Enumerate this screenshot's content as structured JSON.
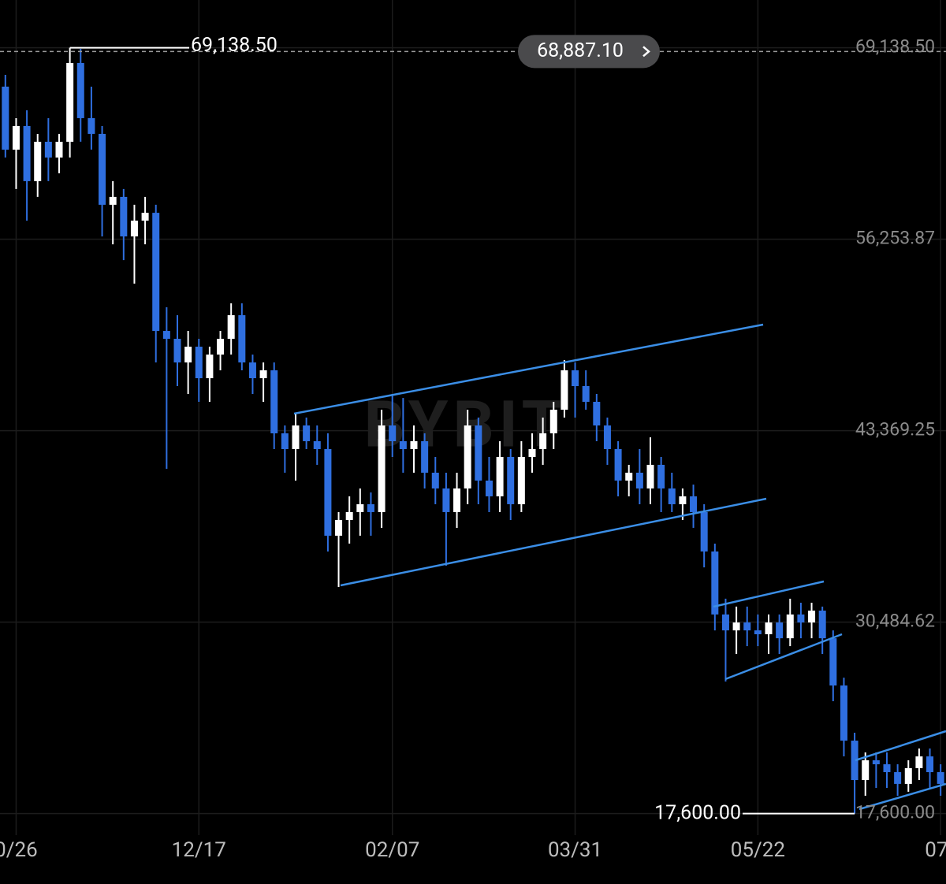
{
  "chart_data": {
    "type": "candlestick",
    "watermark": "BYBIT",
    "up_color": "#ffffff",
    "down_color": "#2f6fe0",
    "grid": true,
    "ylim": [
      16150,
      72350
    ],
    "yticks": [
      {
        "value": 69138.5,
        "label": "69,138.50"
      },
      {
        "value": 56253.87,
        "label": "56,253.87"
      },
      {
        "value": 43369.25,
        "label": "43,369.25"
      },
      {
        "value": 30484.62,
        "label": "30,484.62"
      },
      {
        "value": 17600,
        "label": "17,600.00"
      }
    ],
    "high_marker": {
      "value": 69138.5,
      "label": "69,138.50"
    },
    "low_marker": {
      "value": 17600,
      "label": "17,600.00"
    },
    "last_price": {
      "value": 68887.1,
      "label": "68,887.10"
    },
    "categories": [
      null,
      "0/26",
      null,
      null,
      null,
      null,
      null,
      null,
      null,
      null,
      null,
      null,
      null,
      null,
      null,
      null,
      null,
      null,
      "12/17",
      null,
      null,
      null,
      null,
      null,
      null,
      null,
      null,
      null,
      null,
      null,
      null,
      null,
      null,
      null,
      null,
      null,
      "02/07",
      null,
      null,
      null,
      null,
      null,
      null,
      null,
      null,
      null,
      null,
      null,
      null,
      null,
      null,
      null,
      null,
      "03/31",
      null,
      null,
      null,
      null,
      null,
      null,
      null,
      null,
      null,
      null,
      null,
      null,
      null,
      null,
      null,
      null,
      "05/22",
      null,
      null,
      null,
      null,
      null,
      null,
      null,
      null,
      null,
      null,
      null,
      null,
      null,
      null,
      null,
      null,
      "07/"
    ],
    "open": [
      66520,
      62280,
      63870,
      60160,
      62810,
      61750,
      62810,
      68110,
      64400,
      63340,
      58570,
      59100,
      56440,
      57500,
      58030,
      50080,
      49550,
      47960,
      49020,
      46900,
      48490,
      49550,
      51140,
      47960,
      46900,
      47430,
      43190,
      42130,
      43720,
      42660,
      42130,
      36300,
      37360,
      37890,
      38420,
      37890,
      43720,
      42660,
      42130,
      42660,
      40540,
      39480,
      37890,
      39480,
      43720,
      40010,
      38950,
      41600,
      38420,
      41600,
      42130,
      43190,
      44780,
      47430,
      46370,
      45310,
      43720,
      42130,
      40010,
      40540,
      39480,
      41070,
      39480,
      38420,
      38950,
      37890,
      35240,
      31000,
      29930,
      30460,
      29930,
      29670,
      30460,
      29400,
      31000,
      30460,
      31260,
      29400,
      26220,
      22510,
      19860,
      21190,
      20920,
      20390,
      19600,
      20660,
      21450,
      20390
    ],
    "high": [
      67310,
      64400,
      64930,
      63340,
      64400,
      63340,
      69138.5,
      69060,
      66520,
      63870,
      60160,
      59630,
      58570,
      59100,
      58570,
      51670,
      51140,
      50080,
      49550,
      49020,
      50080,
      51940,
      51940,
      48490,
      47960,
      47960,
      43720,
      44520,
      44250,
      43720,
      43190,
      37890,
      38950,
      39480,
      39210,
      44780,
      45840,
      45570,
      43720,
      43190,
      41600,
      40540,
      40540,
      44780,
      44250,
      41600,
      42660,
      42130,
      42660,
      43190,
      44250,
      45310,
      48120,
      47960,
      47430,
      45840,
      44250,
      42660,
      41070,
      42130,
      42920,
      41600,
      40540,
      39480,
      39740,
      38420,
      35770,
      32060,
      31530,
      31530,
      31000,
      31000,
      31000,
      32060,
      31790,
      31790,
      31530,
      29930,
      26750,
      23040,
      21720,
      21720,
      21720,
      20920,
      21190,
      21980,
      21980,
      20920
    ],
    "low": [
      61750,
      59630,
      57500,
      59100,
      60160,
      60690,
      61750,
      62810,
      62280,
      56440,
      55910,
      54850,
      53260,
      55910,
      47960,
      40800,
      46370,
      45840,
      45310,
      45310,
      47430,
      48490,
      47430,
      45840,
      45310,
      42130,
      40540,
      40010,
      42130,
      41070,
      35240,
      32850,
      35770,
      36300,
      36300,
      36830,
      41600,
      40540,
      40540,
      39480,
      38420,
      34280,
      36830,
      38420,
      38420,
      37890,
      37890,
      37360,
      37890,
      40540,
      41070,
      42130,
      44250,
      44250,
      44780,
      42660,
      41070,
      38950,
      38950,
      38420,
      38420,
      37890,
      37890,
      37360,
      36830,
      34170,
      29930,
      26490,
      28340,
      28870,
      28870,
      28340,
      28340,
      28870,
      29400,
      29400,
      28340,
      25160,
      21450,
      17600,
      18800,
      19330,
      19330,
      18800,
      19070,
      19860,
      19330,
      18800
    ],
    "close": [
      62280,
      63870,
      60160,
      62810,
      61750,
      62810,
      68110,
      64400,
      63340,
      58570,
      59100,
      56440,
      57500,
      58030,
      50080,
      49550,
      47960,
      49020,
      46900,
      48490,
      49550,
      51140,
      47960,
      46900,
      47430,
      43190,
      42130,
      43720,
      42660,
      42130,
      36300,
      37360,
      37890,
      38420,
      37890,
      43720,
      42660,
      42130,
      42660,
      40540,
      39480,
      37890,
      39480,
      43720,
      40010,
      38950,
      41600,
      38420,
      41600,
      42130,
      43190,
      44780,
      47430,
      46370,
      45310,
      43720,
      42130,
      40010,
      40540,
      39480,
      41070,
      39480,
      38420,
      38950,
      37890,
      35240,
      31000,
      29930,
      30460,
      29930,
      29670,
      30460,
      29400,
      31000,
      30460,
      31260,
      29400,
      26220,
      22510,
      19860,
      21190,
      20920,
      20390,
      19600,
      20660,
      21450,
      20390,
      19600
    ]
  }
}
